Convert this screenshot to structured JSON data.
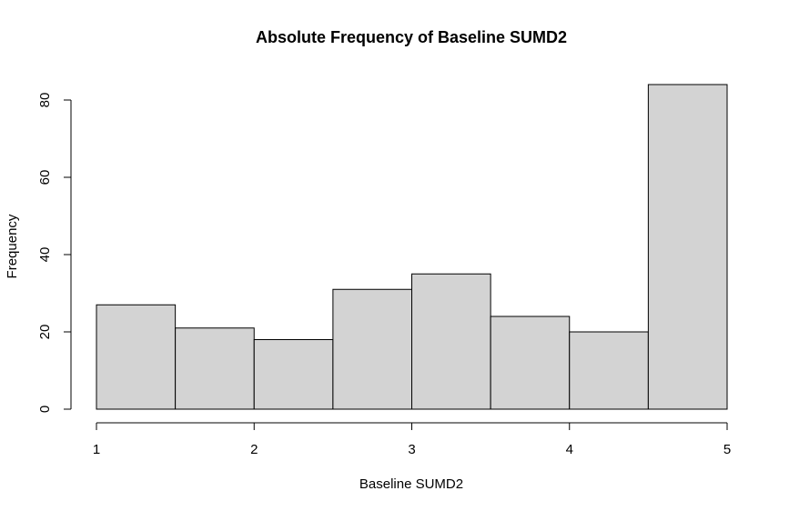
{
  "chart_data": {
    "type": "bar",
    "title": "Absolute Frequency of Baseline SUMD2",
    "xlabel": "Baseline SUMD2",
    "ylabel": "Frequency",
    "bins": [
      {
        "start": 1.0,
        "end": 1.5,
        "count": 27
      },
      {
        "start": 1.5,
        "end": 2.0,
        "count": 21
      },
      {
        "start": 2.0,
        "end": 2.5,
        "count": 18
      },
      {
        "start": 2.5,
        "end": 3.0,
        "count": 31
      },
      {
        "start": 3.0,
        "end": 3.5,
        "count": 35
      },
      {
        "start": 3.5,
        "end": 4.0,
        "count": 24
      },
      {
        "start": 4.0,
        "end": 4.5,
        "count": 20
      },
      {
        "start": 4.5,
        "end": 5.0,
        "count": 84
      }
    ],
    "xlim": [
      1,
      5
    ],
    "ylim": [
      0,
      80
    ],
    "xticks": [
      "1",
      "2",
      "3",
      "4",
      "5"
    ],
    "yticks": [
      "0",
      "20",
      "40",
      "60",
      "80"
    ],
    "grid": false,
    "bar_color": "#d3d3d3",
    "edge_color": "#000000"
  }
}
